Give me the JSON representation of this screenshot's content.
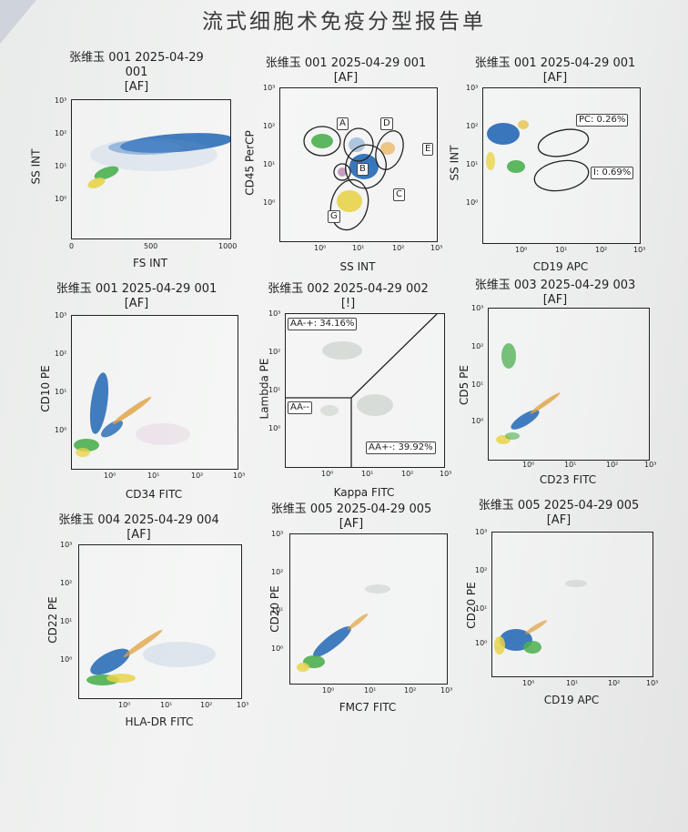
{
  "report": {
    "title": "流式细胞术免疫分型报告单"
  },
  "plots": [
    {
      "head1": "张维玉 001 2025-04-29",
      "head2": "001",
      "head3": "[AF]",
      "ylabel": "SS INT",
      "xlabel": "FS INT",
      "xticks": [
        "0",
        "500",
        "1000"
      ],
      "yticks": [
        "10³",
        "10²",
        "10¹",
        "10⁰"
      ]
    },
    {
      "head1": "张维玉 001 2025-04-29 001",
      "head2": "[AF]",
      "ylabel": "CD45 PerCP",
      "xlabel": "SS INT",
      "xticks": [
        "10⁰",
        "10¹",
        "10²",
        "10³"
      ],
      "yticks": [
        "10³",
        "10²",
        "10¹",
        "10⁰"
      ],
      "gates": [
        "A",
        "D",
        "E",
        "B",
        "C",
        "G"
      ]
    },
    {
      "head1": "张维玉 001 2025-04-29 001",
      "head2": "[AF]",
      "ylabel": "SS INT",
      "xlabel": "CD19 APC",
      "xticks": [
        "10⁰",
        "10¹",
        "10²",
        "10³"
      ],
      "yticks": [
        "10³",
        "10²",
        "10¹",
        "10⁰"
      ],
      "gates": [
        "PC: 0.26%",
        "I: 0.69%"
      ]
    },
    {
      "head1": "张维玉 001 2025-04-29 001",
      "head2": "[AF]",
      "ylabel": "CD10 PE",
      "xlabel": "CD34 FITC",
      "xticks": [
        "10⁰",
        "10¹",
        "10²",
        "10³"
      ],
      "yticks": [
        "10³",
        "10²",
        "10¹",
        "10⁰"
      ]
    },
    {
      "head1": "张维玉 002 2025-04-29 002",
      "head2": "[!]",
      "ylabel": "Lambda PE",
      "xlabel": "Kappa FITC",
      "xticks": [
        "10⁰",
        "10¹",
        "10²",
        "10³"
      ],
      "yticks": [
        "10³",
        "10²",
        "10¹",
        "10⁰"
      ],
      "gates": [
        "AA-+: 34.16%",
        "AA--",
        "AA+-: 39.92%"
      ]
    },
    {
      "head1": "张维玉 003 2025-04-29 003",
      "head2": "[AF]",
      "ylabel": "CD5 PE",
      "xlabel": "CD23 FITC",
      "xticks": [
        "10⁰",
        "10¹",
        "10²",
        "10³"
      ],
      "yticks": [
        "10³",
        "10²",
        "10¹",
        "10⁰"
      ]
    },
    {
      "head1": "张维玉 004 2025-04-29 004",
      "head2": "[AF]",
      "ylabel": "CD22 PE",
      "xlabel": "HLA-DR FITC",
      "xticks": [
        "10⁰",
        "10¹",
        "10²",
        "10³"
      ],
      "yticks": [
        "10³",
        "10²",
        "10¹",
        "10⁰"
      ]
    },
    {
      "head1": "张维玉 005 2025-04-29 005",
      "head2": "[AF]",
      "ylabel": "CD20 PE",
      "xlabel": "FMC7 FITC",
      "xticks": [
        "10⁰",
        "10¹",
        "10²",
        "10³"
      ],
      "yticks": [
        "10³",
        "10²",
        "10¹",
        "10⁰"
      ]
    },
    {
      "head1": "张维玉 005 2025-04-29 005",
      "head2": "[AF]",
      "ylabel": "CD20 PE",
      "xlabel": "CD19 APC",
      "xticks": [
        "10⁰",
        "10¹",
        "10²",
        "10³"
      ],
      "yticks": [
        "10³",
        "10²",
        "10¹",
        "10⁰"
      ]
    }
  ]
}
